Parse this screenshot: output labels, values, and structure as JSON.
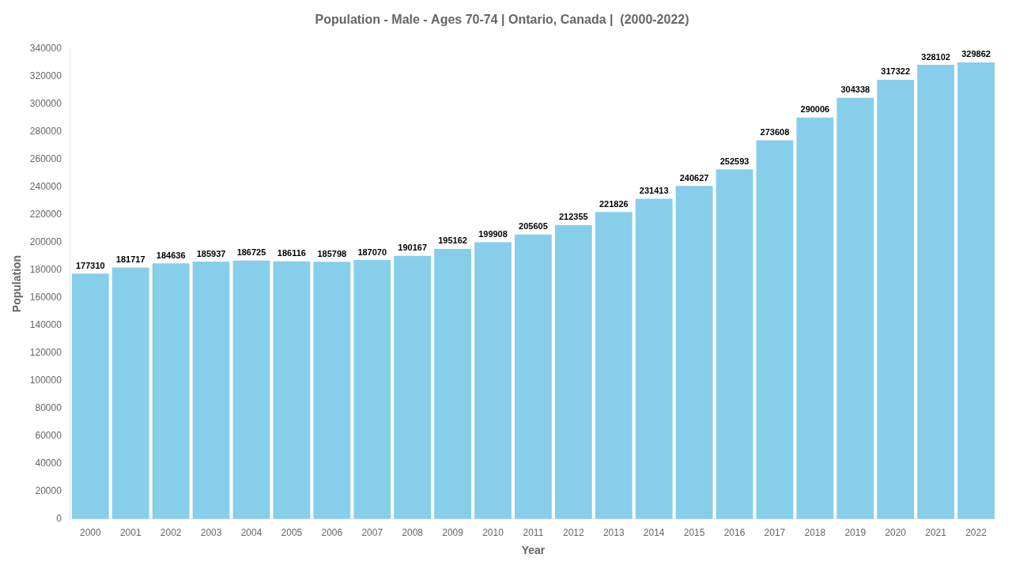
{
  "chart_data": {
    "type": "bar",
    "title": "Population - Male - Ages 70-74 | Ontario, Canada |  (2000-2022)",
    "x_label": "Year",
    "y_label": "Population",
    "categories": [
      "2000",
      "2001",
      "2002",
      "2003",
      "2004",
      "2005",
      "2006",
      "2007",
      "2008",
      "2009",
      "2010",
      "2011",
      "2012",
      "2013",
      "2014",
      "2015",
      "2016",
      "2017",
      "2018",
      "2019",
      "2020",
      "2021",
      "2022"
    ],
    "values": [
      177310,
      181717,
      184636,
      185937,
      186725,
      186116,
      185798,
      187070,
      190167,
      195162,
      199908,
      205605,
      212355,
      221826,
      231413,
      240627,
      252593,
      273608,
      290006,
      304338,
      317322,
      328102,
      329862
    ],
    "color": "#87CEEB",
    "ylim": [
      0,
      340000
    ],
    "yticks": [
      0,
      20000,
      40000,
      60000,
      80000,
      100000,
      120000,
      140000,
      160000,
      180000,
      200000,
      220000,
      240000,
      260000,
      280000,
      300000,
      320000,
      340000
    ],
    "grid": false,
    "data_labels": true
  }
}
